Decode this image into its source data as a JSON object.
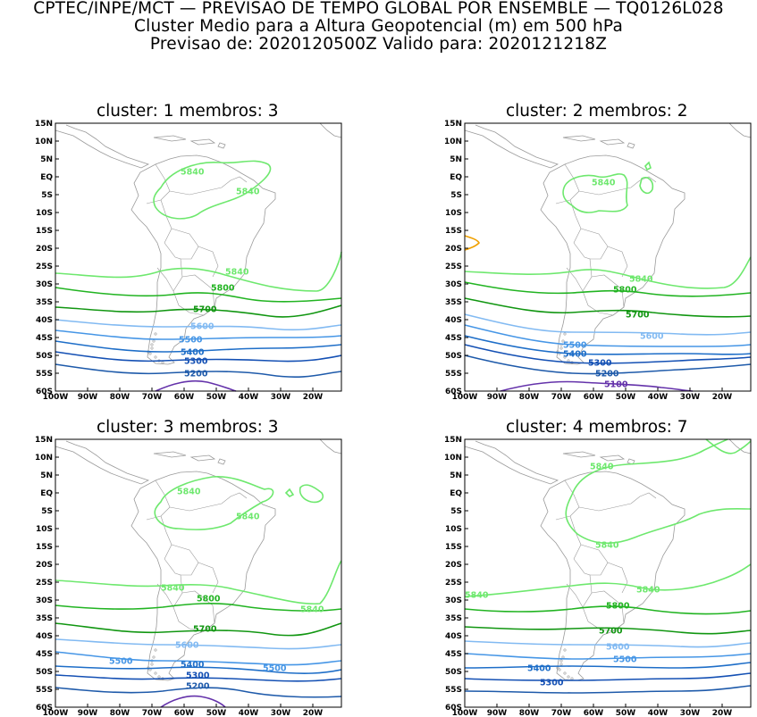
{
  "header": {
    "line1": "CPTEC/INPE/MCT — PREVISAO DE TEMPO GLOBAL POR ENSEMBLE — TQ0126L028",
    "line2": "Cluster Medio para a Altura Geopotencial (m) em 500 hPa",
    "line3": "Previsao de: 2020120500Z   Valido para: 2020121218Z"
  },
  "lat_ticks": [
    "15N",
    "10N",
    "5N",
    "EQ",
    "5S",
    "10S",
    "15S",
    "20S",
    "25S",
    "30S",
    "35S",
    "40S",
    "45S",
    "50S",
    "55S",
    "60S"
  ],
  "lon_ticks": [
    "100W",
    "90W",
    "80W",
    "70W",
    "60W",
    "50W",
    "40W",
    "30W",
    "20W"
  ],
  "colors": {
    "c5840": "#6ee86e",
    "c5800": "#22b422",
    "c5700": "#119611",
    "c5600": "#82baf2",
    "c5500": "#4696e6",
    "c5400": "#1e6ec8",
    "c5300": "#1450b4",
    "c5200": "#1e5aaa",
    "c5100": "#6432aa",
    "c5880": "#f0a000",
    "coast": "#9a9a9a"
  },
  "panels": [
    {
      "title": "cluster: 1   membros: 3",
      "contours": [
        {
          "level": 5840,
          "labels": [
            "5840",
            "5840",
            "5840"
          ]
        },
        {
          "level": 5800,
          "labels": [
            "5800"
          ]
        },
        {
          "level": 5700,
          "labels": [
            "5700"
          ]
        },
        {
          "level": 5600,
          "labels": [
            "5600"
          ]
        },
        {
          "level": 5500,
          "labels": [
            "5500"
          ]
        },
        {
          "level": 5400,
          "labels": [
            "5400"
          ]
        },
        {
          "level": 5300,
          "labels": [
            "5300"
          ]
        },
        {
          "level": 5200,
          "labels": [
            "5200"
          ]
        }
      ]
    },
    {
      "title": "cluster: 2   membros: 2",
      "contours": [
        {
          "level": 5840,
          "labels": [
            "5840",
            "5840"
          ]
        },
        {
          "level": 5800,
          "labels": [
            "5800"
          ]
        },
        {
          "level": 5700,
          "labels": [
            "5700"
          ]
        },
        {
          "level": 5600,
          "labels": [
            "5600"
          ]
        },
        {
          "level": 5500,
          "labels": [
            "5500"
          ]
        },
        {
          "level": 5400,
          "labels": [
            "5400"
          ]
        },
        {
          "level": 5300,
          "labels": [
            "5300"
          ]
        },
        {
          "level": 5200,
          "labels": [
            "5200"
          ]
        },
        {
          "level": 5100,
          "labels": [
            "5100"
          ]
        }
      ]
    },
    {
      "title": "cluster: 3   membros: 3",
      "contours": [
        {
          "level": 5840,
          "labels": [
            "5840",
            "5840",
            "5840",
            "5840"
          ]
        },
        {
          "level": 5800,
          "labels": [
            "5800"
          ]
        },
        {
          "level": 5700,
          "labels": [
            "5700"
          ]
        },
        {
          "level": 5600,
          "labels": [
            "5600"
          ]
        },
        {
          "level": 5500,
          "labels": [
            "5500",
            "5500"
          ]
        },
        {
          "level": 5400,
          "labels": [
            "5400"
          ]
        },
        {
          "level": 5300,
          "labels": [
            "5300"
          ]
        },
        {
          "level": 5200,
          "labels": [
            "5200"
          ]
        }
      ]
    },
    {
      "title": "cluster: 4   membros: 7",
      "contours": [
        {
          "level": 5840,
          "labels": [
            "5840",
            "5840",
            "5840",
            "5840"
          ]
        },
        {
          "level": 5800,
          "labels": [
            "5800"
          ]
        },
        {
          "level": 5700,
          "labels": [
            "5700"
          ]
        },
        {
          "level": 5600,
          "labels": [
            "5600"
          ]
        },
        {
          "level": 5500,
          "labels": [
            "5500"
          ]
        },
        {
          "level": 5400,
          "labels": [
            "5400"
          ]
        },
        {
          "level": 5300,
          "labels": [
            "5300"
          ]
        }
      ]
    }
  ]
}
